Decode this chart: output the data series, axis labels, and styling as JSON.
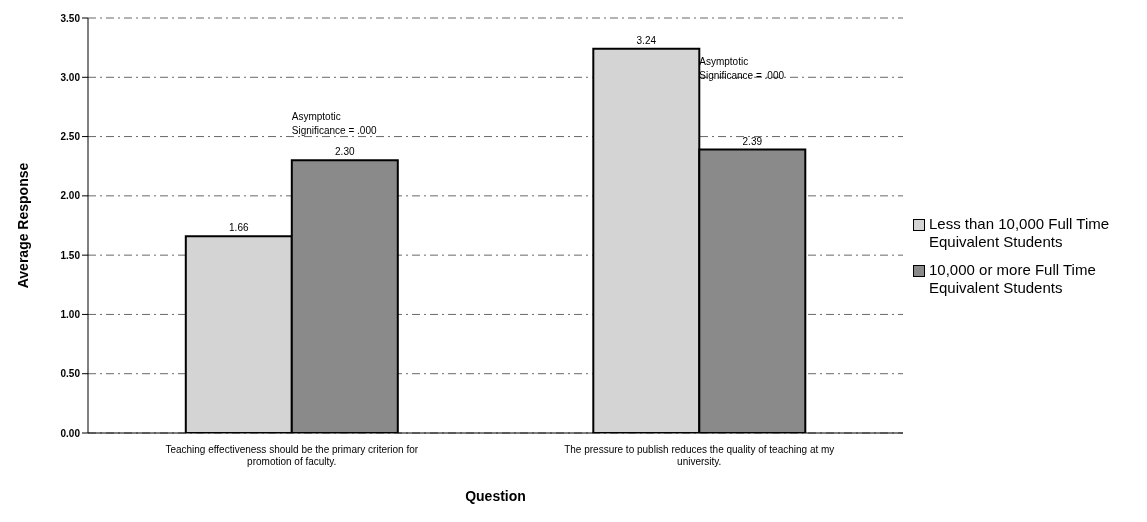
{
  "chart_data": {
    "type": "bar",
    "xlabel": "Question",
    "ylabel": "Average Response",
    "categories": [
      "Teaching effectiveness should be the primary criterion for promotion of faculty.",
      "The pressure to publish reduces the quality of teaching at my university."
    ],
    "series": [
      {
        "name": "Less than 10,000 Full Time Equivalent Students",
        "color": "#d4d4d4",
        "values": [
          1.66,
          3.24
        ],
        "value_labels": [
          "1.66",
          "3.24"
        ]
      },
      {
        "name": "10,000 or more Full Time Equivalent Students",
        "color": "#8a8a8a",
        "values": [
          2.3,
          2.39
        ],
        "value_labels": [
          "2.30",
          "2.39"
        ]
      }
    ],
    "ylim": [
      0,
      3.5
    ],
    "yticks": [
      {
        "value": 0,
        "label": "0.00"
      },
      {
        "value": 0.5,
        "label": "0.50"
      },
      {
        "value": 1,
        "label": "1.00"
      },
      {
        "value": 1.5,
        "label": "1.50"
      },
      {
        "value": 2,
        "label": "2.00"
      },
      {
        "value": 2.5,
        "label": "2.50"
      },
      {
        "value": 3,
        "label": "3.00"
      },
      {
        "value": 3.5,
        "label": "3.50"
      }
    ],
    "grid": "y",
    "legend": "right",
    "annotations": [
      "Asymptotic Significance = .000",
      "Asymptotic Significance = .000"
    ]
  }
}
